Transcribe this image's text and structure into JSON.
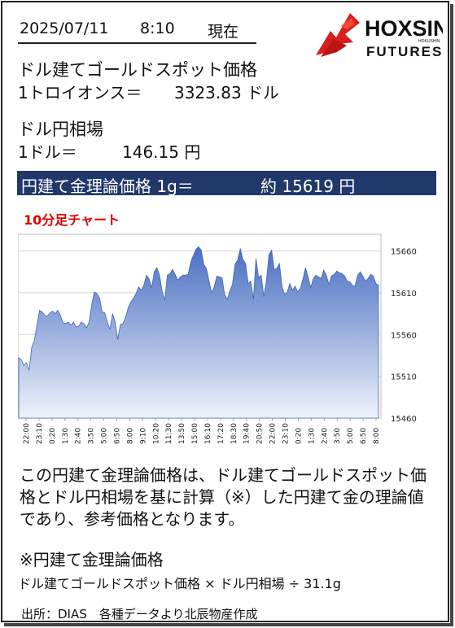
{
  "header": {
    "date": "2025/07/11",
    "time": "8:10",
    "now_label": "現在"
  },
  "logo": {
    "brand": "HOXSIN",
    "sub": "FUTURES",
    "small": "HOKUSHIN",
    "accent_color": "#d81e1e"
  },
  "gold": {
    "label": "ドル建てゴールドスポット価格",
    "unit": "1トロイオンス＝",
    "price": "3323.83 ドル"
  },
  "fx": {
    "label": "ドル円相場",
    "unit": "1ドル＝",
    "rate": "146.15 円"
  },
  "banner": {
    "label": "円建て金理論価格 1g＝",
    "value": "約 15619 円",
    "color": "#20386a"
  },
  "chart_title": "10分足チャート",
  "chart_data": {
    "type": "area",
    "title": "10分足チャート",
    "xlabel": "",
    "ylabel": "",
    "ylim": [
      15460,
      15680
    ],
    "yticks": [
      15460,
      15510,
      15560,
      15610,
      15660
    ],
    "grid": true,
    "color": "#4a74c4",
    "x_tick_labels": [
      "22:00",
      "23:10",
      "0:20",
      "1:30",
      "2:40",
      "3:50",
      "5:00",
      "6:50",
      "8:00",
      "9:10",
      "10:20",
      "11:30",
      "13:50",
      "15:00",
      "16:10",
      "17:20",
      "18:30",
      "19:40",
      "20:50",
      "22:00",
      "23:10",
      "0:20",
      "1:30",
      "2:40",
      "3:50",
      "5:00",
      "6:50",
      "8:00"
    ],
    "values": [
      15532,
      15530,
      15523,
      15526,
      15517,
      15545,
      15553,
      15571,
      15589,
      15587,
      15583,
      15582,
      15586,
      15588,
      15585,
      15589,
      15583,
      15574,
      15573,
      15575,
      15571,
      15575,
      15569,
      15570,
      15575,
      15573,
      15568,
      15575,
      15596,
      15611,
      15609,
      15604,
      15587,
      15586,
      15575,
      15566,
      15585,
      15575,
      15554,
      15572,
      15573,
      15581,
      15592,
      15599,
      15603,
      15609,
      15617,
      15613,
      15619,
      15631,
      15627,
      15616,
      15635,
      15640,
      15631,
      15612,
      15601,
      15631,
      15633,
      15638,
      15632,
      15625,
      15629,
      15631,
      15631,
      15632,
      15647,
      15655,
      15662,
      15665,
      15661,
      15644,
      15639,
      15624,
      15610,
      15617,
      15630,
      15629,
      15628,
      15608,
      15602,
      15612,
      15620,
      15644,
      15649,
      15663,
      15650,
      15645,
      15621,
      15624,
      15602,
      15651,
      15628,
      15631,
      15605,
      15624,
      15656,
      15661,
      15638,
      15639,
      15645,
      15617,
      15608,
      15611,
      15621,
      15613,
      15618,
      15611,
      15615,
      15626,
      15640,
      15629,
      15616,
      15627,
      15631,
      15629,
      15627,
      15637,
      15631,
      15620,
      15630,
      15632,
      15636,
      15634,
      15633,
      15630,
      15624,
      15623,
      15619,
      15618,
      15631,
      15635,
      15630,
      15624,
      15627,
      15632,
      15630,
      15621,
      15619
    ]
  },
  "description": "この円建て金理論価格は、ドル建てゴールドスポット価格とドル円相場を基に計算（※）した円建て金の理論値であり、参考価格となります。",
  "note": {
    "title": "※円建て金理論価格",
    "formula": "ドル建てゴールドスポット価格 × ドル円相場 ÷ 31.1g"
  },
  "source": "出所：DIAS　各種データより北辰物産作成"
}
